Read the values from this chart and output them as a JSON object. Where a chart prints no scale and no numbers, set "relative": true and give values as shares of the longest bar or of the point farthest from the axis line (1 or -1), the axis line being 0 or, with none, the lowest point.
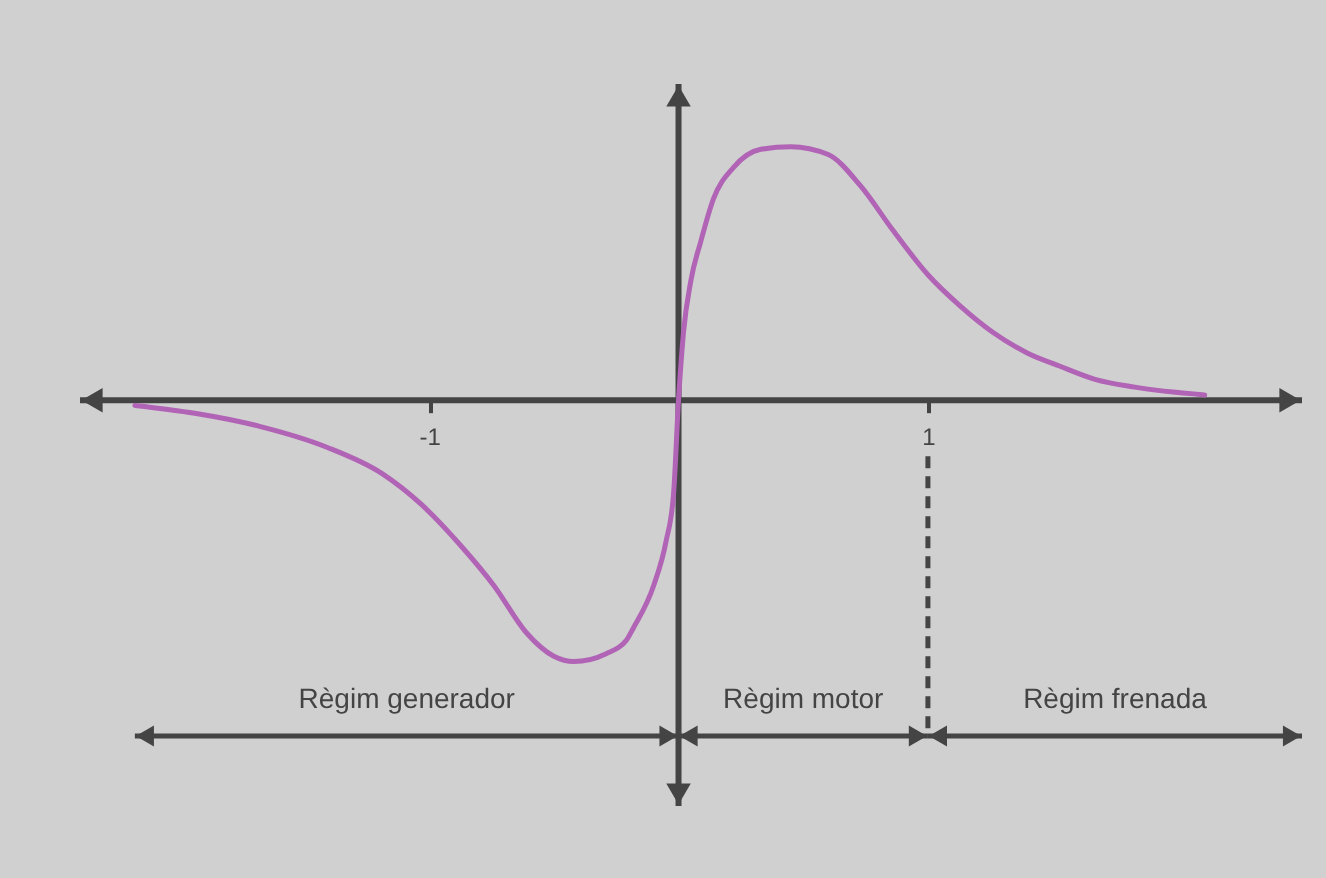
{
  "chart_data": {
    "type": "line",
    "relative": true,
    "x": [
      -2.18,
      -1.94,
      -1.68,
      -1.41,
      -1.19,
      -1.03,
      -0.87,
      -0.74,
      -0.61,
      -0.5,
      -0.42,
      -0.29,
      -0.21,
      -0.18,
      -0.1,
      -0.05,
      -0.02,
      0,
      0.02,
      0.05,
      0.09,
      0.14,
      0.22,
      0.33,
      0.45,
      0.6,
      0.73,
      0.86,
      1.0,
      1.13,
      1.26,
      1.4,
      1.53,
      1.67,
      1.83,
      2.11
    ],
    "series": [
      {
        "color": "#b163b6",
        "values": [
          -0.02,
          -0.05,
          -0.1,
          -0.18,
          -0.28,
          -0.4,
          -0.56,
          -0.71,
          -0.89,
          -0.98,
          -1,
          -0.97,
          -0.92,
          -0.87,
          -0.71,
          -0.54,
          -0.36,
          0,
          0.26,
          0.46,
          0.61,
          0.77,
          0.89,
          0.96,
          0.97,
          0.94,
          0.82,
          0.65,
          0.48,
          0.36,
          0.26,
          0.18,
          0.13,
          0.08,
          0.05,
          0.02
        ]
      }
    ],
    "xlim": [
      -2.4,
      2.5
    ],
    "xticks": [
      -1,
      1
    ],
    "ref_lines": [
      {
        "axis": "x",
        "value": 1,
        "line_style": "dashed"
      }
    ],
    "annotations": [
      "Règim generador",
      "Règim motor",
      "Règim frenada"
    ]
  }
}
